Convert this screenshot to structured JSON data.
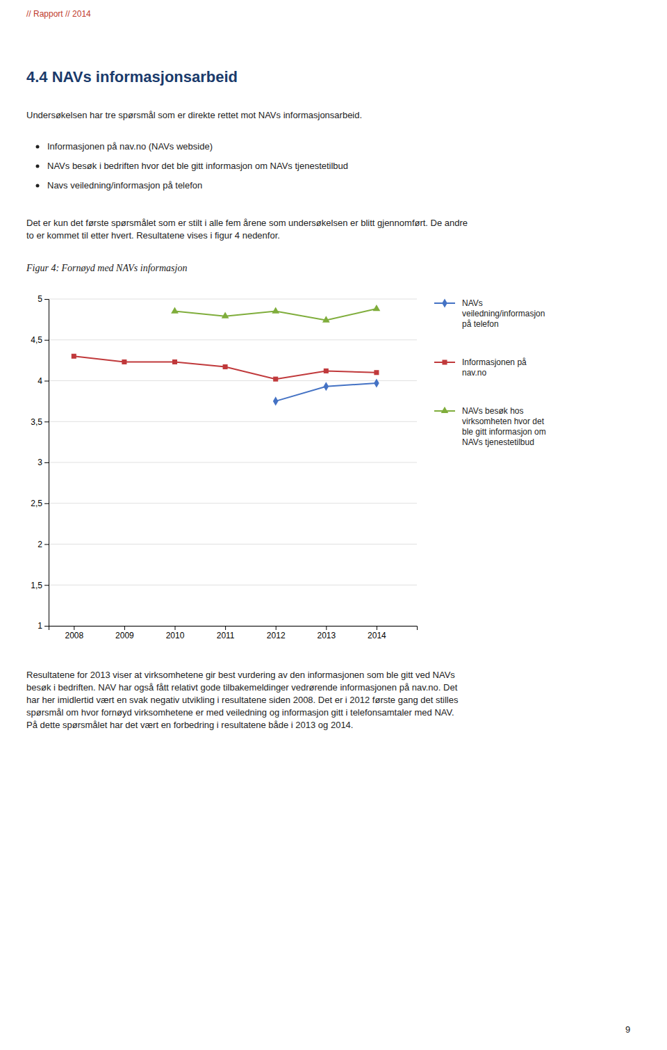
{
  "header": "// Rapport  // 2014",
  "heading": "4.4   NAVs informasjonsarbeid",
  "para1": "Undersøkelsen har tre spørsmål som er direkte rettet mot NAVs informasjonsarbeid.",
  "bullets": [
    "Informasjonen på nav.no (NAVs webside)",
    "NAVs besøk i bedriften hvor det ble gitt informasjon om NAVs tjenestetilbud",
    "Navs veiledning/informasjon på telefon"
  ],
  "para2": [
    "Det er kun det første spørsmålet som er stilt i alle fem årene som undersøkelsen er blitt gjennomført. De andre",
    "to er kommet til etter hvert. Resultatene vises i figur 4 nedenfor."
  ],
  "para3": [
    "Resultatene for 2013 viser at virksomhetene gir best vurdering av den informasjonen som ble gitt ved NAVs",
    "besøk i bedriften. NAV har også fått relativt gode tilbakemeldinger vedrørende informasjonen på nav.no. Det",
    "har her imidlertid vært en svak negativ utvikling i resultatene siden 2008. Det er i 2012 første gang det stilles",
    "spørsmål om hvor fornøyd virksomhetene er med veiledning og informasjon gitt i telefonsamtaler med NAV.",
    "På dette spørsmålet har det vært en forbedring i resultatene både i 2013 og 2014."
  ],
  "page_number": "9",
  "chart_data": {
    "type": "line",
    "title": "Figur 4: Fornøyd med NAVs informasjon",
    "x": [
      2008,
      2009,
      2010,
      2011,
      2012,
      2013,
      2014
    ],
    "xlim": [
      2007.5,
      2014.8
    ],
    "xticks": [
      2008,
      2009,
      2010,
      2011,
      2012,
      2013,
      2014
    ],
    "ylim": [
      1,
      5
    ],
    "yticks": [
      1,
      {
        "value": 1.5,
        "label": "1,5"
      },
      2,
      {
        "value": 2.5,
        "label": "2,5"
      },
      3,
      {
        "value": 3.5,
        "label": "3,5"
      },
      4,
      {
        "value": 4.5,
        "label": "4,5"
      },
      5
    ],
    "grid": true,
    "legend": "right",
    "series": [
      {
        "name": "NAVs\nveiledning/informasjon\npå telefon",
        "color": "#4472c4",
        "marker": "diamond",
        "values": [
          null,
          null,
          null,
          null,
          3.75,
          3.93,
          3.97
        ]
      },
      {
        "name": "Informasjonen på\nnav.no",
        "color": "#c0393b",
        "marker": "square",
        "values": [
          4.3,
          4.23,
          4.23,
          4.17,
          4.02,
          4.12,
          4.1
        ]
      },
      {
        "name": "NAVs besøk hos\nvirksomheten hvor det\nble gitt informasjon om\nNAVs tjenestetilbud",
        "color": "#7fad3b",
        "marker": "triangle",
        "values": [
          null,
          null,
          4.85,
          4.79,
          4.85,
          4.74,
          4.88
        ]
      }
    ]
  }
}
